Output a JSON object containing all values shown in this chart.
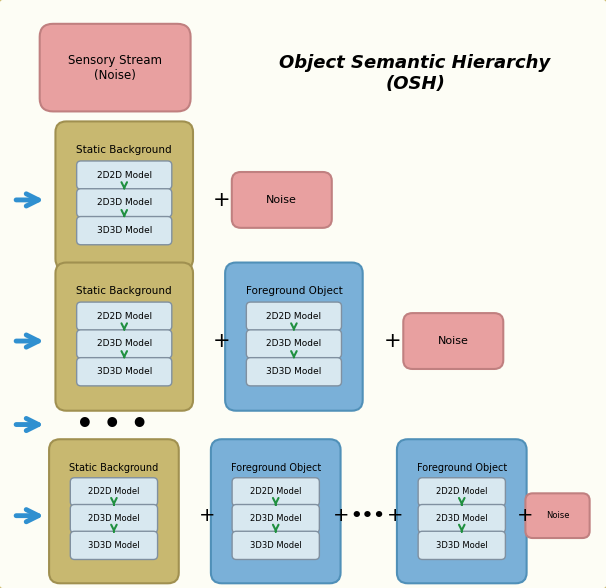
{
  "title": "Object Semantic Hierarchy\n(OSH)",
  "background_color": "#ffffff",
  "outer_border_color": "#c8b560",
  "noise_box_color": "#e8a0a0",
  "noise_box_edge": "#c08080",
  "static_bg_color": "#c8b870",
  "static_bg_edge": "#a09050",
  "foreground_color": "#7ab0d8",
  "foreground_edge": "#5090b8",
  "model_box_color": "#d8e8f0",
  "model_box_edge": "#8090a0",
  "arrow_color": "#3090d0",
  "green_arrow_color": "#209040",
  "title_fontsize": 13,
  "label_fontsize": 7.5,
  "model_fontsize": 6.5,
  "model_labels": [
    "2D2D Model",
    "2D3D Model",
    "3D3D Model"
  ]
}
